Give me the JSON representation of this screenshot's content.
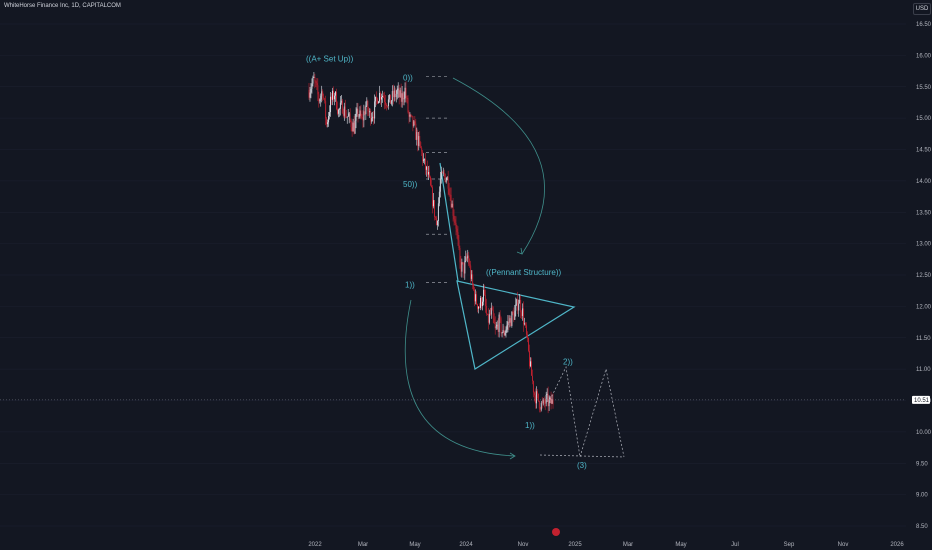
{
  "header": {
    "symbol_line": "WhiteHorse Finance Inc, 1D, CAPITALCOM",
    "currency_button": "USD"
  },
  "chart_data": {
    "type": "candlestick",
    "price_axis": {
      "ticks": [
        "16.50",
        "16.00",
        "15.50",
        "15.00",
        "14.50",
        "14.00",
        "13.50",
        "13.00",
        "12.50",
        "12.00",
        "11.50",
        "11.00",
        "10.50",
        "10.00",
        "9.50",
        "9.00",
        "8.50"
      ],
      "ylim": [
        8.5,
        16.5
      ]
    },
    "time_axis": {
      "ticks": [
        "2022",
        "Mar",
        "May",
        "2024",
        "Nov",
        "2025",
        "Mar",
        "May",
        "Jul",
        "Sep",
        "Nov",
        "2026"
      ]
    },
    "last_price": "10.51",
    "price_path": [
      [
        0,
        15.45
      ],
      [
        5,
        15.6
      ],
      [
        10,
        15.3
      ],
      [
        14,
        15.45
      ],
      [
        18,
        14.9
      ],
      [
        22,
        15.25
      ],
      [
        26,
        15.4
      ],
      [
        30,
        15.1
      ],
      [
        34,
        15.2
      ],
      [
        38,
        15.05
      ],
      [
        42,
        14.95
      ],
      [
        46,
        14.85
      ],
      [
        50,
        15.1
      ],
      [
        54,
        14.95
      ],
      [
        58,
        15.2
      ],
      [
        62,
        15.05
      ],
      [
        66,
        15.1
      ],
      [
        70,
        15.35
      ],
      [
        74,
        15.4
      ],
      [
        78,
        15.3
      ],
      [
        82,
        15.25
      ],
      [
        86,
        15.35
      ],
      [
        90,
        15.4
      ],
      [
        94,
        15.3
      ],
      [
        98,
        15.45
      ],
      [
        102,
        15.0
      ],
      [
        106,
        14.9
      ],
      [
        110,
        14.7
      ],
      [
        114,
        14.5
      ],
      [
        118,
        14.25
      ],
      [
        122,
        14.05
      ],
      [
        126,
        13.7
      ],
      [
        130,
        13.3
      ],
      [
        134,
        14.0
      ],
      [
        138,
        14.1
      ],
      [
        142,
        14.0
      ],
      [
        146,
        13.6
      ],
      [
        150,
        13.3
      ],
      [
        154,
        12.65
      ],
      [
        158,
        12.6
      ],
      [
        162,
        12.8
      ],
      [
        166,
        12.4
      ],
      [
        170,
        12.1
      ],
      [
        174,
        12.0
      ],
      [
        178,
        12.2
      ],
      [
        182,
        11.75
      ],
      [
        186,
        11.9
      ],
      [
        190,
        11.6
      ],
      [
        194,
        11.75
      ],
      [
        198,
        11.55
      ],
      [
        202,
        11.7
      ],
      [
        206,
        11.8
      ],
      [
        210,
        11.9
      ],
      [
        214,
        12.1
      ],
      [
        218,
        11.9
      ],
      [
        222,
        11.5
      ],
      [
        226,
        11.0
      ],
      [
        230,
        10.6
      ],
      [
        234,
        10.5
      ],
      [
        238,
        10.4
      ],
      [
        242,
        10.5
      ],
      [
        246,
        10.45
      ],
      [
        250,
        10.5
      ]
    ],
    "annotations": [
      {
        "text": "((A+ Set Up))",
        "price": 15.95
      },
      {
        "text": "0))",
        "price": 15.65
      },
      {
        "text": "50))",
        "price": 13.95
      },
      {
        "text": "((Pennant Structure))",
        "price": 12.55
      },
      {
        "text": "1))",
        "price": 12.35
      },
      {
        "text": "2))",
        "price": 11.12
      },
      {
        "text": "1))",
        "price": 10.11
      },
      {
        "text": "(3)",
        "price": 9.47
      }
    ],
    "fib_levels": [
      15.66,
      15.0,
      14.45,
      14.03,
      13.15,
      12.38
    ],
    "colors": {
      "background": "#131722",
      "up": "#e0e3eb",
      "down": "#c2212f",
      "drawing": "#4fb6c8",
      "grid": "#1c2030",
      "axis_text": "#b2b5be"
    }
  }
}
